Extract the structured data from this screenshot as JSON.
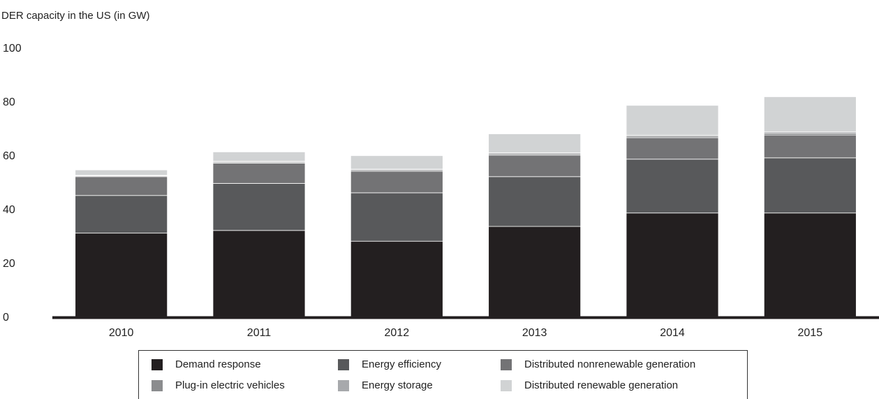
{
  "chart_data": {
    "type": "bar",
    "stacked": true,
    "ylabel": "DER capacity in the US (in GW)",
    "ylim": [
      0,
      100
    ],
    "yticks": [
      0,
      20,
      40,
      60,
      80,
      100
    ],
    "categories": [
      "2010",
      "2011",
      "2012",
      "2013",
      "2014",
      "2015"
    ],
    "series": [
      {
        "name": "Demand response",
        "color": "#231f20",
        "values": [
          31,
          32,
          28,
          33.5,
          38.5,
          38.5
        ]
      },
      {
        "name": "Energy efficiency",
        "color": "#58595b",
        "values": [
          14,
          17.5,
          18,
          18.5,
          20,
          20.5
        ]
      },
      {
        "name": "Distributed nonrenewable generation",
        "color": "#737375",
        "values": [
          7,
          7.5,
          8,
          8,
          8,
          8.5
        ]
      },
      {
        "name": "Plug-in electric vehicles",
        "color": "#8b8c8e",
        "values": [
          0.3,
          0.4,
          0.5,
          0.5,
          0.6,
          0.7
        ]
      },
      {
        "name": "Energy storage",
        "color": "#a7a9ac",
        "values": [
          0.2,
          0.3,
          0.3,
          0.4,
          0.4,
          0.5
        ]
      },
      {
        "name": "Distributed renewable generation",
        "color": "#d1d3d4",
        "values": [
          2,
          3.5,
          5,
          7,
          11,
          13
        ]
      }
    ],
    "legend_position": "bottom"
  }
}
